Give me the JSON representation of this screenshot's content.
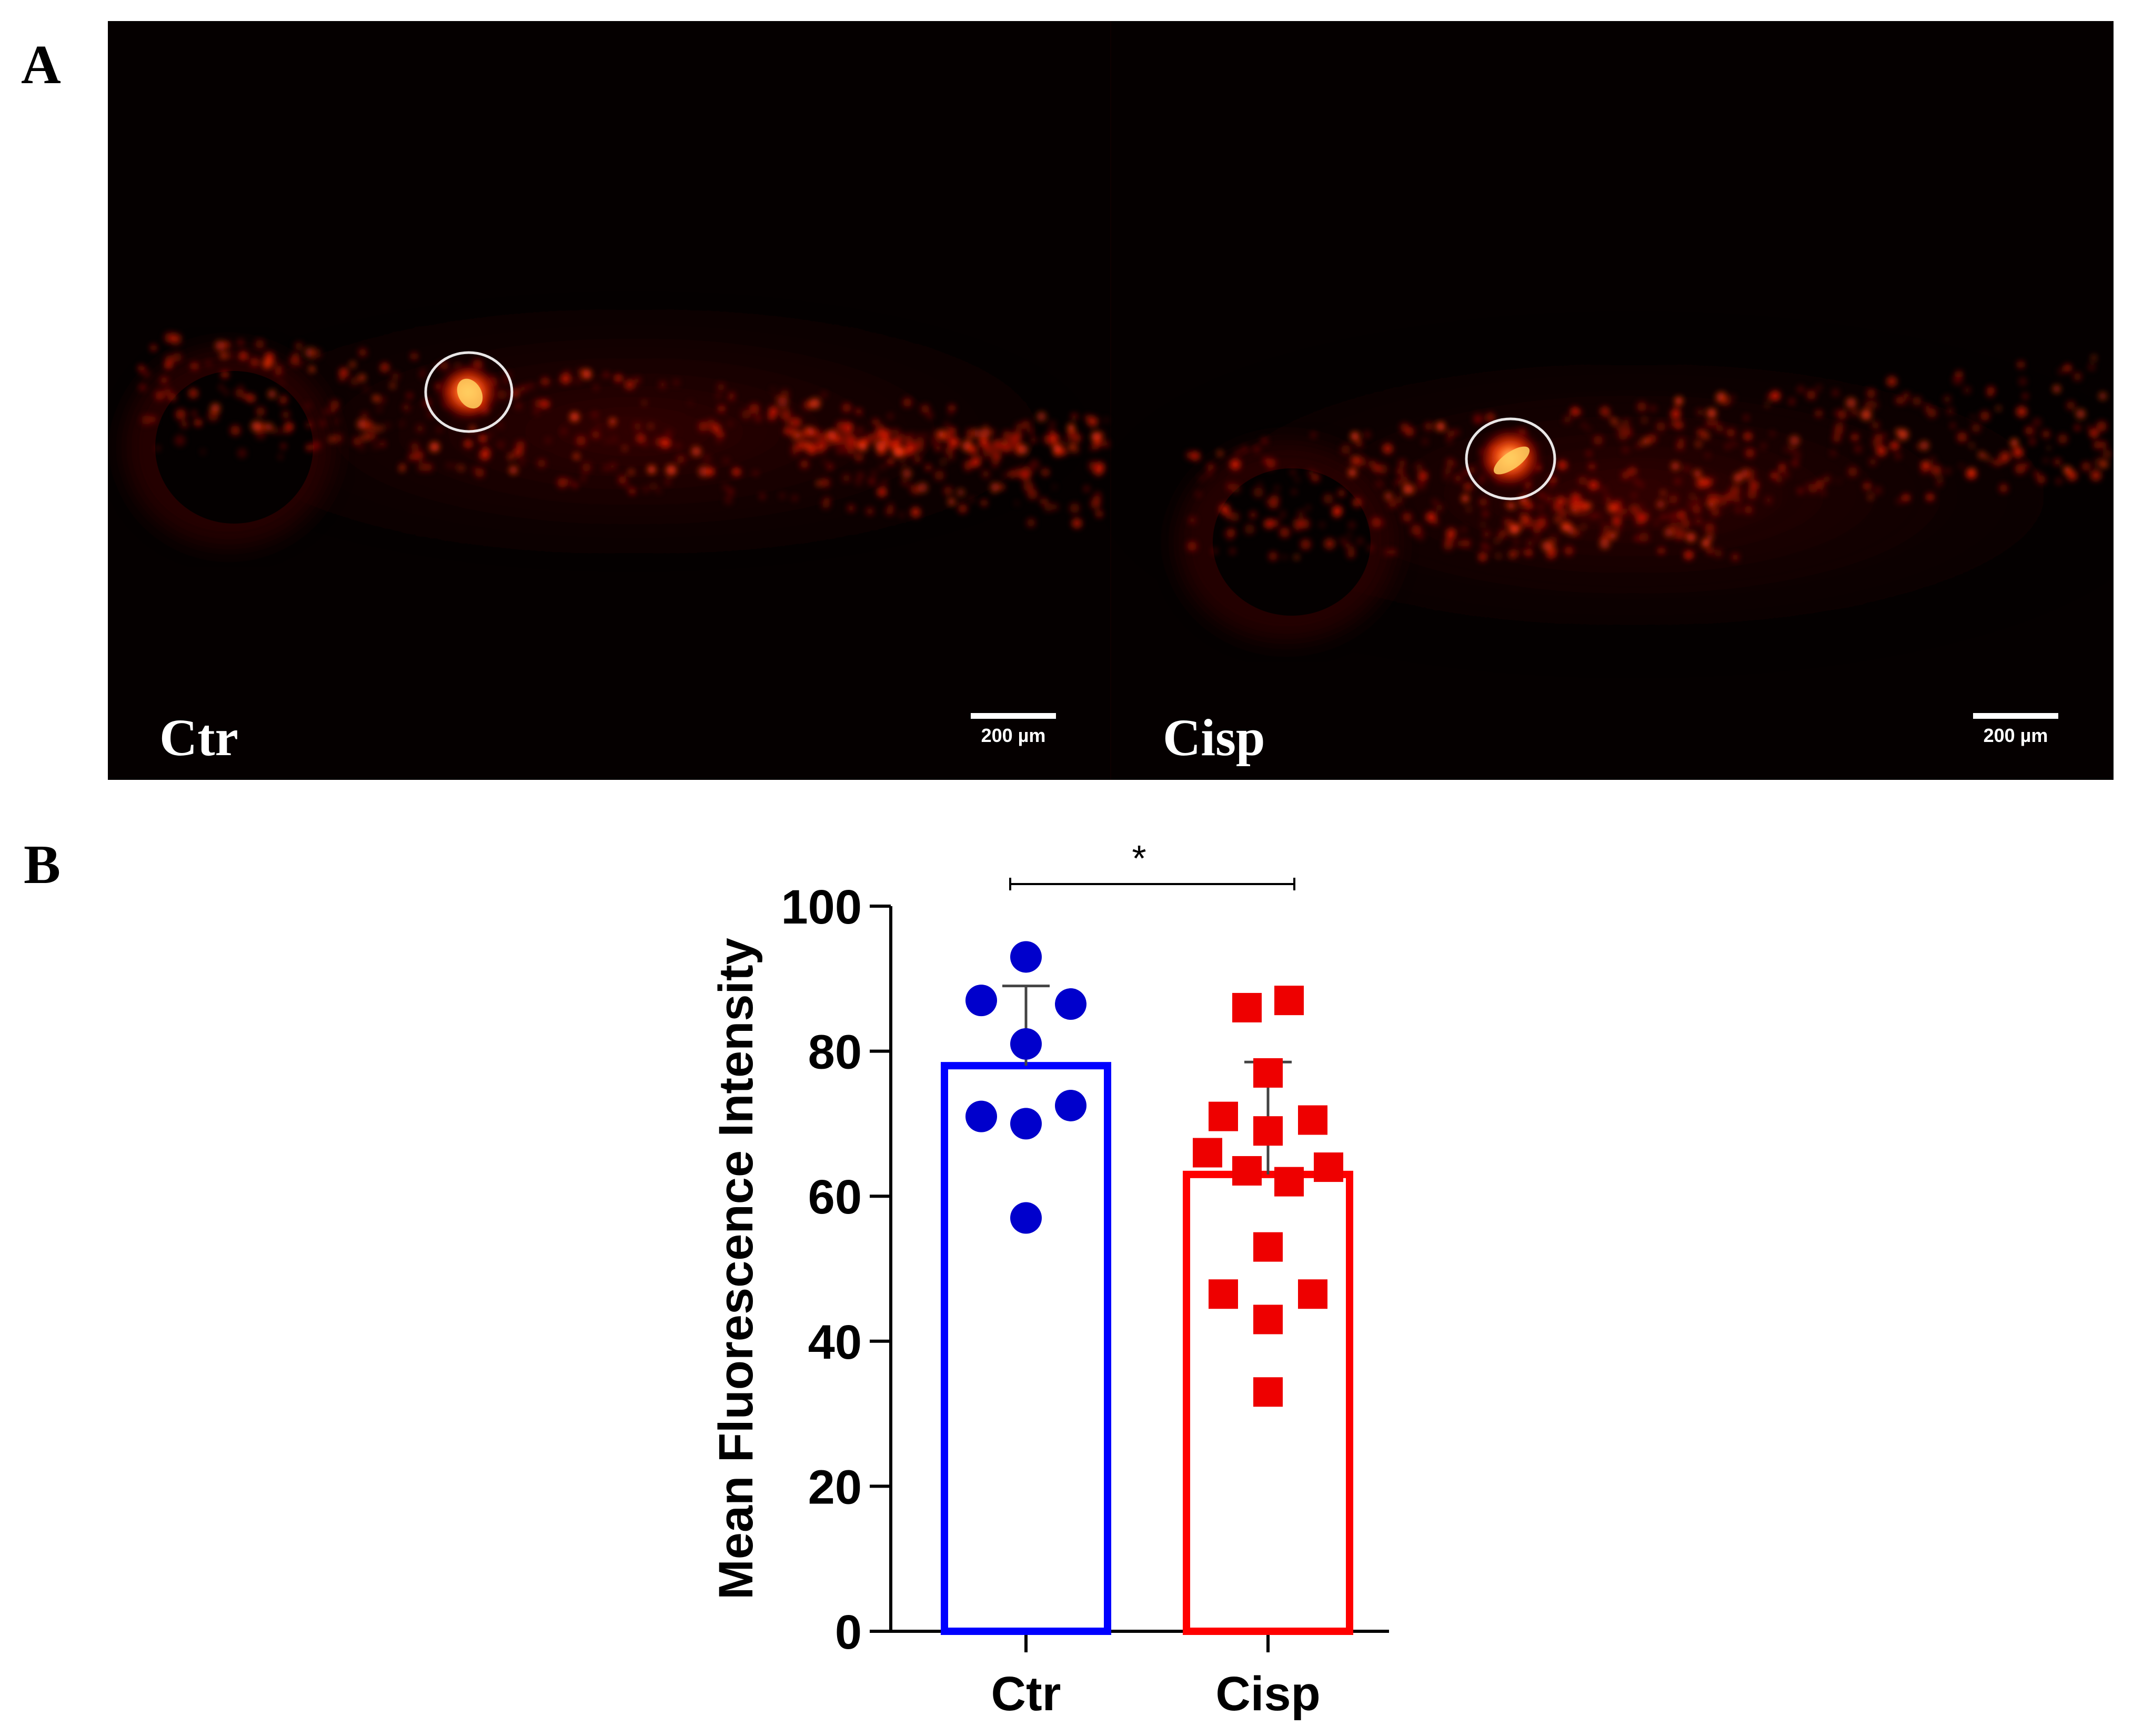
{
  "panels": {
    "a_label": "A",
    "b_label": "B"
  },
  "micrographs": [
    {
      "label": "Ctr",
      "scale_bar": "200 µm"
    },
    {
      "label": "Cisp",
      "scale_bar": "200 µm"
    }
  ],
  "chart_data": {
    "type": "bar",
    "categories": [
      "Ctr",
      "Cisp"
    ],
    "ylabel": "Mean Fluorescence Intensity",
    "ylim": [
      0,
      100
    ],
    "yticks": [
      0,
      20,
      40,
      60,
      80,
      100
    ],
    "bars": [
      {
        "category": "Ctr",
        "mean": 78,
        "sd_upper": 89,
        "color": "#0000ff",
        "marker": "circle",
        "marker_color": "#0000cc",
        "points": [
          93,
          87,
          86.5,
          81,
          72.5,
          71,
          70,
          57
        ]
      },
      {
        "category": "Cisp",
        "mean": 63,
        "sd_upper": 78.5,
        "color": "#ff0000",
        "marker": "square",
        "marker_color": "#ee0000",
        "points": [
          87,
          86,
          77,
          71,
          70.5,
          69,
          66,
          64,
          63.5,
          62,
          53,
          46.5,
          46.5,
          43,
          33
        ]
      }
    ],
    "significance": {
      "text": "*",
      "between": [
        "Ctr",
        "Cisp"
      ]
    }
  }
}
